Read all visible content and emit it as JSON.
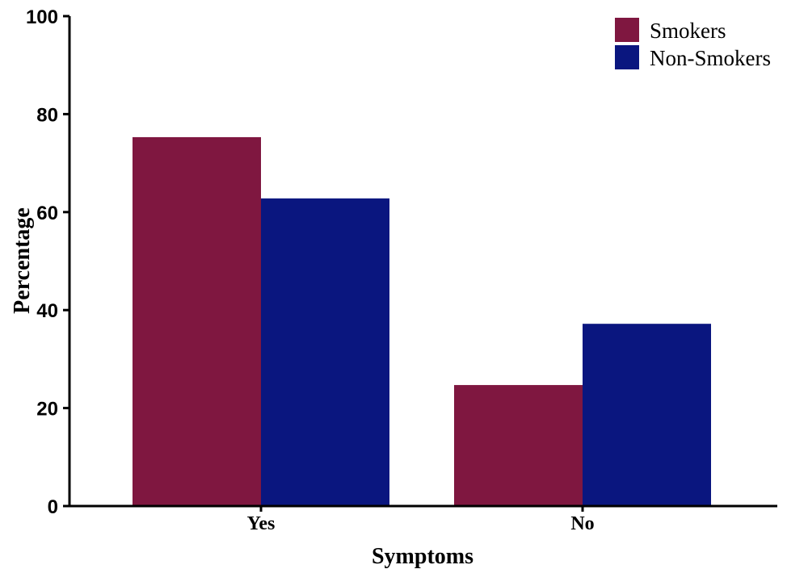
{
  "chart_data": {
    "type": "bar",
    "categories": [
      "Yes",
      "No"
    ],
    "series": [
      {
        "name": "Smokers",
        "values": [
          75.3,
          24.7
        ],
        "color": "#7f1740"
      },
      {
        "name": "Non-Smokers",
        "values": [
          62.8,
          37.2
        ],
        "color": "#0a167f"
      }
    ],
    "xlabel": "Symptoms",
    "ylabel": "Percentage",
    "ylim": [
      0,
      100
    ],
    "yticks": [
      "0",
      "20",
      "40",
      "60",
      "80",
      "100"
    ],
    "legend": "top-right",
    "grid": false
  }
}
